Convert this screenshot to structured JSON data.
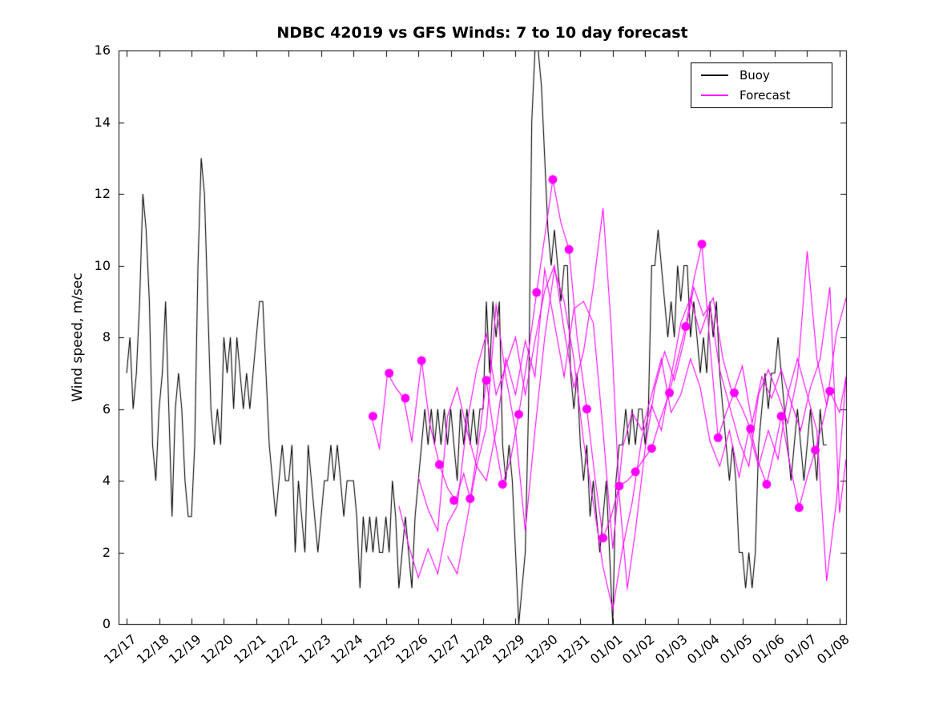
{
  "figure": {
    "background": "#ffffff",
    "accent_color": "#ff00ff",
    "line_color": "#000000"
  },
  "chart_data": {
    "type": "line",
    "title": "NDBC 42019 vs GFS Winds: 7 to 10 day forecast",
    "xlabel": "",
    "ylabel": "Wind speed, m/sec",
    "ylim": [
      0,
      16
    ],
    "yticks": [
      0,
      2,
      4,
      6,
      8,
      10,
      12,
      14,
      16
    ],
    "xlim": [
      -0.25,
      22.2
    ],
    "xtick_positions": [
      0,
      1,
      2,
      3,
      4,
      5,
      6,
      7,
      8,
      9,
      10,
      11,
      12,
      13,
      14,
      15,
      16,
      17,
      18,
      19,
      20,
      21,
      22
    ],
    "xtick_labels": [
      "12/17",
      "12/18",
      "12/19",
      "12/20",
      "12/21",
      "12/22",
      "12/23",
      "12/24",
      "12/25",
      "12/26",
      "12/27",
      "12/28",
      "12/29",
      "12/30",
      "12/31",
      "01/01",
      "01/02",
      "01/03",
      "01/04",
      "01/05",
      "01/06",
      "01/07",
      "01/08"
    ],
    "grid": false,
    "legend": {
      "position": "top-right",
      "entries": [
        {
          "label": "Buoy",
          "color": "#000000"
        },
        {
          "label": "Forecast",
          "color": "#ff00ff"
        }
      ]
    },
    "series": [
      {
        "name": "Buoy",
        "color": "#000000",
        "x_start": 0,
        "dx": 0.1,
        "values": [
          7,
          8,
          6,
          7,
          9,
          12,
          11,
          9,
          5,
          4,
          6,
          7,
          9,
          6,
          3,
          6,
          7,
          6,
          4,
          3,
          3,
          5,
          10,
          13,
          12,
          9,
          6,
          5,
          6,
          5,
          8,
          7,
          8,
          6,
          8,
          7,
          6,
          7,
          6,
          7,
          8,
          9,
          9,
          7,
          5,
          4,
          3,
          4,
          5,
          4,
          4,
          5,
          2,
          4,
          3,
          2,
          5,
          4,
          3,
          2,
          3,
          4,
          4,
          5,
          4,
          5,
          4,
          3,
          4,
          4,
          4,
          3,
          1,
          3,
          2,
          3,
          2,
          3,
          2,
          2,
          3,
          2,
          4,
          3,
          1,
          2,
          3,
          2,
          1,
          3,
          4,
          5,
          6,
          5,
          6,
          5,
          6,
          5,
          6,
          5,
          6,
          5,
          4,
          6,
          5,
          6,
          5,
          6,
          5,
          6,
          6,
          9,
          7,
          9,
          8,
          9,
          5,
          4,
          5,
          4,
          2,
          0,
          1,
          2,
          6,
          14,
          16,
          16,
          15,
          13,
          11,
          10,
          11,
          10,
          9,
          10,
          10,
          7,
          6,
          7,
          5,
          4,
          5,
          3,
          4,
          3,
          2,
          3,
          4,
          2,
          0,
          4,
          5,
          5,
          6,
          5,
          6,
          5,
          6,
          6,
          5,
          6,
          10,
          10,
          11,
          10,
          9,
          8,
          9,
          8,
          10,
          9,
          10,
          10,
          8,
          9,
          8,
          7,
          8,
          7,
          9,
          8,
          9,
          7,
          6,
          5,
          4,
          5,
          4,
          2,
          2,
          1,
          2,
          1,
          2,
          5,
          6,
          7,
          6,
          7,
          7,
          8,
          7,
          6,
          5,
          4,
          5,
          6,
          5,
          4,
          5,
          6,
          5,
          4,
          6,
          5,
          5
        ]
      },
      {
        "name": "Forecast run 1",
        "color": "#ff00ff",
        "points": [
          [
            7.55,
            5.8
          ],
          [
            7.8,
            4.9
          ],
          [
            8.05,
            7.0
          ],
          [
            8.3,
            6.6
          ],
          [
            8.55,
            6.3
          ],
          [
            8.8,
            5.1
          ],
          [
            9.1,
            7.35
          ],
          [
            9.35,
            5.6
          ],
          [
            9.65,
            4.45
          ],
          [
            9.9,
            3.8
          ],
          [
            10.15,
            3.45
          ],
          [
            10.4,
            4.2
          ],
          [
            10.6,
            3.5
          ],
          [
            10.85,
            5.0
          ],
          [
            11.1,
            6.8
          ],
          [
            11.35,
            5.2
          ],
          [
            11.6,
            3.9
          ],
          [
            11.85,
            4.6
          ],
          [
            12.1,
            5.85
          ],
          [
            12.4,
            7.6
          ],
          [
            12.65,
            9.25
          ],
          [
            12.9,
            10.8
          ],
          [
            13.15,
            12.4
          ],
          [
            13.4,
            11.2
          ],
          [
            13.65,
            10.45
          ],
          [
            13.9,
            8.0
          ],
          [
            14.2,
            6.0
          ],
          [
            14.45,
            4.1
          ],
          [
            14.7,
            2.4
          ],
          [
            14.95,
            3.0
          ],
          [
            15.2,
            3.85
          ],
          [
            15.45,
            4.0
          ],
          [
            15.7,
            4.25
          ],
          [
            15.95,
            4.6
          ],
          [
            16.2,
            4.9
          ],
          [
            16.5,
            5.8
          ],
          [
            16.75,
            6.45
          ],
          [
            17.0,
            7.4
          ],
          [
            17.25,
            8.3
          ],
          [
            17.5,
            9.6
          ],
          [
            17.75,
            10.6
          ],
          [
            18.0,
            7.8
          ],
          [
            18.25,
            5.2
          ],
          [
            18.5,
            5.9
          ],
          [
            18.75,
            6.45
          ],
          [
            19.0,
            6.0
          ],
          [
            19.25,
            5.45
          ],
          [
            19.5,
            4.5
          ],
          [
            19.75,
            3.9
          ],
          [
            20.0,
            4.9
          ],
          [
            20.2,
            5.8
          ],
          [
            20.5,
            4.3
          ],
          [
            20.75,
            3.25
          ],
          [
            21.0,
            4.1
          ],
          [
            21.25,
            4.85
          ],
          [
            21.5,
            5.7
          ],
          [
            21.7,
            6.5
          ],
          [
            22.0,
            5.9
          ],
          [
            22.2,
            6.9
          ]
        ]
      },
      {
        "name": "Forecast run 2",
        "color": "#ff00ff",
        "points": [
          [
            8.4,
            3.3
          ],
          [
            8.7,
            2.2
          ],
          [
            9.0,
            1.3
          ],
          [
            9.3,
            2.1
          ],
          [
            9.6,
            1.4
          ],
          [
            9.9,
            2.8
          ],
          [
            10.2,
            3.3
          ],
          [
            10.5,
            5.6
          ],
          [
            10.8,
            7.1
          ],
          [
            11.1,
            8.1
          ],
          [
            11.4,
            6.4
          ],
          [
            11.7,
            7.2
          ],
          [
            12.0,
            8.0
          ],
          [
            12.3,
            6.4
          ],
          [
            12.6,
            7.9
          ],
          [
            12.9,
            9.3
          ],
          [
            13.2,
            10.0
          ],
          [
            13.5,
            8.2
          ],
          [
            13.8,
            6.6
          ],
          [
            14.1,
            7.6
          ],
          [
            14.4,
            9.4
          ],
          [
            14.7,
            11.6
          ],
          [
            14.95,
            8.3
          ],
          [
            15.2,
            3.6
          ],
          [
            15.45,
            1.0
          ],
          [
            15.7,
            2.6
          ],
          [
            16.0,
            4.9
          ],
          [
            16.3,
            6.6
          ],
          [
            16.6,
            7.6
          ],
          [
            16.9,
            6.8
          ],
          [
            17.2,
            7.9
          ],
          [
            17.5,
            9.4
          ],
          [
            17.8,
            8.6
          ],
          [
            18.1,
            9.1
          ],
          [
            18.4,
            7.4
          ],
          [
            18.7,
            6.4
          ],
          [
            19.0,
            7.2
          ],
          [
            19.3,
            5.6
          ],
          [
            19.6,
            6.9
          ],
          [
            19.9,
            6.3
          ],
          [
            20.2,
            7.1
          ],
          [
            20.5,
            6.2
          ],
          [
            20.8,
            5.4
          ],
          [
            21.1,
            6.6
          ],
          [
            21.4,
            7.4
          ],
          [
            21.7,
            9.4
          ],
          [
            22.0,
            3.1
          ],
          [
            22.2,
            4.6
          ]
        ]
      },
      {
        "name": "Forecast run 3",
        "color": "#ff00ff",
        "points": [
          [
            9.0,
            4.1
          ],
          [
            9.3,
            3.2
          ],
          [
            9.6,
            2.6
          ],
          [
            9.9,
            5.8
          ],
          [
            10.2,
            6.6
          ],
          [
            10.5,
            5.4
          ],
          [
            10.8,
            4.4
          ],
          [
            11.1,
            5.5
          ],
          [
            11.4,
            8.9
          ],
          [
            11.7,
            6.9
          ],
          [
            12.0,
            5.4
          ],
          [
            12.3,
            2.6
          ],
          [
            12.6,
            5.4
          ],
          [
            12.9,
            8.0
          ],
          [
            13.2,
            9.9
          ],
          [
            13.5,
            9.0
          ],
          [
            13.8,
            7.4
          ],
          [
            14.1,
            5.1
          ],
          [
            14.4,
            3.4
          ],
          [
            14.7,
            1.6
          ],
          [
            15.0,
            0.4
          ],
          [
            15.3,
            2.1
          ],
          [
            15.6,
            3.4
          ],
          [
            15.9,
            5.2
          ],
          [
            16.2,
            6.1
          ],
          [
            16.5,
            5.4
          ],
          [
            16.8,
            6.9
          ],
          [
            17.1,
            8.4
          ],
          [
            17.4,
            9.1
          ],
          [
            17.7,
            8.1
          ],
          [
            18.0,
            8.9
          ],
          [
            18.3,
            7.1
          ],
          [
            18.6,
            6.1
          ],
          [
            18.9,
            5.1
          ],
          [
            19.2,
            4.4
          ],
          [
            19.5,
            6.4
          ],
          [
            19.8,
            7.1
          ],
          [
            20.1,
            6.4
          ],
          [
            20.4,
            5.6
          ],
          [
            20.7,
            6.9
          ],
          [
            21.0,
            10.4
          ],
          [
            21.3,
            7.4
          ],
          [
            21.6,
            6.1
          ],
          [
            21.9,
            8.1
          ],
          [
            22.2,
            9.1
          ]
        ]
      },
      {
        "name": "Forecast run 4",
        "color": "#ff00ff",
        "points": [
          [
            9.9,
            1.9
          ],
          [
            10.2,
            1.4
          ],
          [
            10.5,
            2.9
          ],
          [
            10.8,
            4.4
          ],
          [
            11.1,
            4.0
          ],
          [
            11.4,
            5.4
          ],
          [
            11.7,
            7.4
          ],
          [
            12.0,
            6.4
          ],
          [
            12.3,
            7.9
          ],
          [
            12.6,
            6.9
          ],
          [
            12.9,
            9.9
          ],
          [
            13.2,
            8.4
          ],
          [
            13.5,
            6.9
          ],
          [
            13.8,
            8.8
          ],
          [
            14.1,
            9.0
          ],
          [
            14.4,
            8.4
          ],
          [
            14.7,
            5.4
          ],
          [
            15.0,
            2.1
          ],
          [
            15.3,
            4.9
          ],
          [
            15.6,
            5.9
          ],
          [
            15.9,
            5.4
          ],
          [
            16.2,
            6.4
          ],
          [
            16.5,
            7.4
          ],
          [
            16.8,
            5.9
          ],
          [
            17.1,
            6.4
          ],
          [
            17.4,
            7.4
          ],
          [
            17.7,
            6.6
          ],
          [
            18.0,
            5.1
          ],
          [
            18.3,
            4.4
          ],
          [
            18.6,
            5.4
          ],
          [
            18.9,
            4.1
          ],
          [
            19.2,
            5.4
          ],
          [
            19.5,
            4.4
          ],
          [
            19.8,
            5.4
          ],
          [
            20.1,
            4.6
          ],
          [
            20.4,
            6.4
          ],
          [
            20.7,
            7.4
          ],
          [
            21.0,
            6.4
          ],
          [
            21.3,
            5.4
          ],
          [
            21.6,
            1.2
          ],
          [
            21.9,
            3.4
          ],
          [
            22.2,
            6.9
          ]
        ]
      }
    ],
    "markers": {
      "name": "Forecast markers",
      "color": "#ff00ff",
      "radius": 5.5,
      "points": [
        [
          7.6,
          5.8
        ],
        [
          8.1,
          7.0
        ],
        [
          8.6,
          6.3
        ],
        [
          9.1,
          7.35
        ],
        [
          9.65,
          4.45
        ],
        [
          10.1,
          3.45
        ],
        [
          10.6,
          3.5
        ],
        [
          11.1,
          6.8
        ],
        [
          11.6,
          3.9
        ],
        [
          12.1,
          5.85
        ],
        [
          12.65,
          9.25
        ],
        [
          13.15,
          12.4
        ],
        [
          13.65,
          10.45
        ],
        [
          14.2,
          6.0
        ],
        [
          14.7,
          2.4
        ],
        [
          15.2,
          3.85
        ],
        [
          15.7,
          4.25
        ],
        [
          16.2,
          4.9
        ],
        [
          16.75,
          6.45
        ],
        [
          17.25,
          8.3
        ],
        [
          17.75,
          10.6
        ],
        [
          18.25,
          5.2
        ],
        [
          18.75,
          6.45
        ],
        [
          19.25,
          5.45
        ],
        [
          19.75,
          3.9
        ],
        [
          20.2,
          5.8
        ],
        [
          20.75,
          3.25
        ],
        [
          21.25,
          4.85
        ],
        [
          21.7,
          6.5
        ]
      ]
    }
  }
}
